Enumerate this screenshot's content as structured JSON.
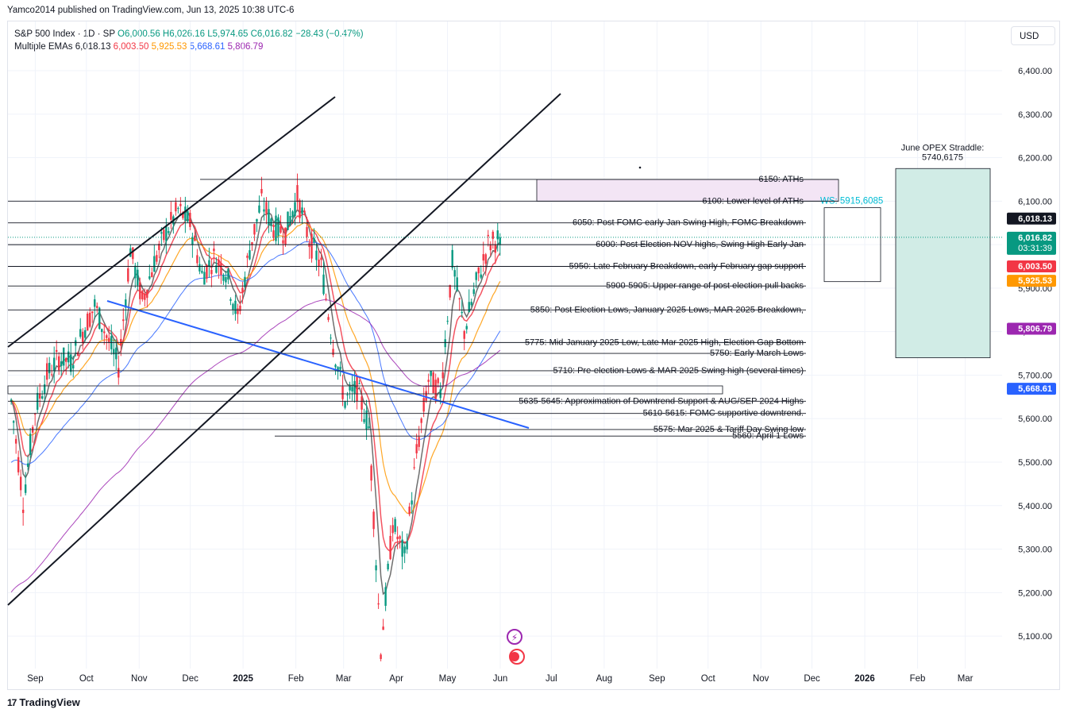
{
  "publisher_line": "Yamco2014 published on TradingView.com, Jun 13, 2025 10:38 UTC-6",
  "legend": {
    "symbol": "S&P 500 Index · 1D · SP",
    "o_label": "O",
    "o": "6,000.56",
    "h_label": "H",
    "h": "6,026.16",
    "l_label": "L",
    "l": "5,974.65",
    "c_label": "C",
    "c": "6,016.82",
    "change": "−28.43 (−0.47%)",
    "ema_label": "Multiple EMAs",
    "ema_values": [
      {
        "value": "6,018.13",
        "color": "#131722"
      },
      {
        "value": "6,003.50",
        "color": "#f23645"
      },
      {
        "value": "5,925.53",
        "color": "#ff9800"
      },
      {
        "value": "5,668.61",
        "color": "#2962ff"
      },
      {
        "value": "5,806.79",
        "color": "#9c27b0"
      }
    ]
  },
  "currency": "USD",
  "footer": {
    "logo_mark": "17",
    "brand": "TradingView"
  },
  "colors": {
    "up": "#089981",
    "down": "#f23645",
    "ema1": "#555555",
    "ema2": "#f23645",
    "ema3": "#ff9800",
    "ema4": "#2962ff",
    "ema5": "#9c27b0",
    "trend_blue": "#2962ff",
    "ath_zone": "#f3e5f5",
    "opex_zone": "#d1ece6"
  },
  "chart_data": {
    "type": "candlestick",
    "title": "S&P 500 Index · 1D · SP",
    "ylim": [
      5040,
      6500
    ],
    "y_ticks": [
      "5,100.00",
      "5,200.00",
      "5,300.00",
      "5,400.00",
      "5,500.00",
      "5,600.00",
      "5,700.00",
      "5,800.00",
      "5,900.00",
      "6,000.00",
      "6,100.00",
      "6,200.00",
      "6,300.00",
      "6,400.00"
    ],
    "x_ticks": [
      "Sep",
      "Oct",
      "Nov",
      "Dec",
      "2025",
      "Feb",
      "Mar",
      "Apr",
      "May",
      "Jun",
      "Jul",
      "Aug",
      "Sep",
      "Oct",
      "Nov",
      "Dec",
      "2026",
      "Feb",
      "Mar"
    ],
    "price_series": [
      [
        "2024-08-30",
        5640
      ],
      [
        "2024-09-06",
        5410
      ],
      [
        "2024-09-13",
        5620
      ],
      [
        "2024-09-20",
        5700
      ],
      [
        "2024-09-27",
        5740
      ],
      [
        "2024-10-04",
        5730
      ],
      [
        "2024-10-11",
        5800
      ],
      [
        "2024-10-18",
        5860
      ],
      [
        "2024-10-25",
        5790
      ],
      [
        "2024-11-01",
        5720
      ],
      [
        "2024-11-08",
        5990
      ],
      [
        "2024-11-15",
        5870
      ],
      [
        "2024-11-22",
        5960
      ],
      [
        "2024-11-29",
        6030
      ],
      [
        "2024-12-06",
        6080
      ],
      [
        "2024-12-13",
        6050
      ],
      [
        "2024-12-20",
        5930
      ],
      [
        "2024-12-27",
        5970
      ],
      [
        "2025-01-03",
        5940
      ],
      [
        "2025-01-10",
        5830
      ],
      [
        "2025-01-17",
        5990
      ],
      [
        "2025-01-24",
        6100
      ],
      [
        "2025-01-31",
        6040
      ],
      [
        "2025-02-07",
        6030
      ],
      [
        "2025-02-14",
        6110
      ],
      [
        "2025-02-21",
        6010
      ],
      [
        "2025-02-28",
        5950
      ],
      [
        "2025-03-07",
        5770
      ],
      [
        "2025-03-14",
        5640
      ],
      [
        "2025-03-21",
        5670
      ],
      [
        "2025-03-28",
        5580
      ],
      [
        "2025-04-04",
        5070
      ],
      [
        "2025-04-11",
        5360
      ],
      [
        "2025-04-18",
        5280
      ],
      [
        "2025-04-25",
        5520
      ],
      [
        "2025-05-02",
        5690
      ],
      [
        "2025-05-09",
        5660
      ],
      [
        "2025-05-16",
        5960
      ],
      [
        "2025-05-23",
        5800
      ],
      [
        "2025-05-30",
        5910
      ],
      [
        "2025-06-06",
        6000
      ],
      [
        "2025-06-13",
        6017
      ]
    ],
    "ema_latest": [
      6018.13,
      6003.5,
      5925.53,
      5668.61,
      5806.79
    ],
    "last": {
      "ema1": "6,018.13",
      "close": "6,016.82",
      "countdown": "03:31:39",
      "ema2": "6,003.50",
      "ema3": "5,925.53",
      "ema5": "5,806.79",
      "ema4": "5,668.61"
    },
    "levels": [
      {
        "price": 6150,
        "label": "6150: ATHs"
      },
      {
        "price": 6100,
        "label": "6100: Lower level of ATHs"
      },
      {
        "price": 6050,
        "label": "6050: Post FOMC early Jan Swing High, FOMC Breakdown"
      },
      {
        "price": 6000,
        "label": "6000: Post Election NOV highs, Swing High Early Jan"
      },
      {
        "price": 5950,
        "label": "5950: Late February Breakdown, early February gap support"
      },
      {
        "price": 5905,
        "label": "5900-5905: Upper range of post election pull backs"
      },
      {
        "price": 5850,
        "label": "5850: Post Election Lows, January 2025 Lows, MAR 2025 Breakdown,"
      },
      {
        "price": 5775,
        "label": "5775: Mid-January 2025 Low, Late Mar 2025 High, Election Gap Bottom"
      },
      {
        "price": 5750,
        "label": "5750: Early March Lows"
      },
      {
        "price": 5710,
        "label": "5710: Pre-election Lows & MAR 2025 Swing high (several times)"
      },
      {
        "price": 5640,
        "label": "5635-5645: Approximation of Downtrend Support & AUG/SEP 2024 Highs"
      },
      {
        "price": 5612,
        "label": "5610-5615: FOMC supportive downtrend."
      },
      {
        "price": 5575,
        "label": "5575: Mar 2025 & Tariff Day Swing low"
      },
      {
        "price": 5560,
        "label": "5560: April 1 Lows"
      }
    ],
    "ws_label": "WS: 5915,6085",
    "ws_range": [
      5915,
      6085
    ],
    "ath_zone": [
      6100,
      6150
    ],
    "opex_label": [
      "June OPEX Straddle:",
      "5740,6175"
    ],
    "opex_range": [
      5740,
      6175
    ]
  }
}
